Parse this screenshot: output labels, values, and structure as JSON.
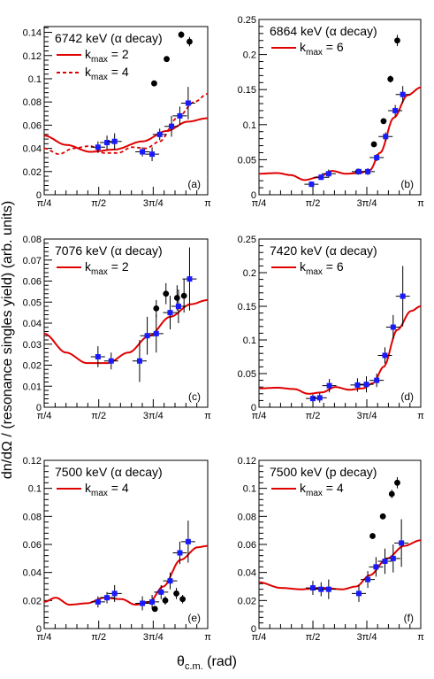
{
  "figure": {
    "ylabel": "dn/dΩ / (resonance singles yield) (arb. units)",
    "xlabel_main": "θ",
    "xlabel_sub": "c.m.",
    "xlabel_unit": " (rad)"
  },
  "chart_data": [
    {
      "type": "scatter",
      "tag": "(a)",
      "title": "6742 keV (α decay)",
      "legend": [
        {
          "label": "k",
          "sub": "max",
          "value": " = 2",
          "style": "solid"
        },
        {
          "label": "k",
          "sub": "max",
          "value": " = 4",
          "style": "dashed"
        }
      ],
      "xlim": [
        0.785,
        3.1416
      ],
      "ylim": [
        0,
        0.145
      ],
      "xticks": [
        "π/4",
        "π/2",
        "3π/4",
        "π"
      ],
      "yticks": [
        "0",
        "0.02",
        "0.04",
        "0.06",
        "0.08",
        "0.1",
        "0.12",
        "0.14"
      ],
      "ytick_values": [
        0,
        0.02,
        0.04,
        0.06,
        0.08,
        0.1,
        0.12,
        0.14
      ],
      "blue_points": [
        {
          "x": 1.56,
          "y": 0.041,
          "ey": 0.005
        },
        {
          "x": 1.69,
          "y": 0.045,
          "ey": 0.006
        },
        {
          "x": 1.8,
          "y": 0.046,
          "ey": 0.007
        },
        {
          "x": 2.2,
          "y": 0.037,
          "ey": 0.004
        },
        {
          "x": 2.34,
          "y": 0.035,
          "ey": 0.006
        },
        {
          "x": 2.45,
          "y": 0.052,
          "ey": 0.005
        },
        {
          "x": 2.62,
          "y": 0.059,
          "ey": 0.009
        },
        {
          "x": 2.74,
          "y": 0.068,
          "ey": 0.008
        },
        {
          "x": 2.86,
          "y": 0.079,
          "ey": 0.014
        }
      ],
      "black_points": [
        {
          "x": 2.37,
          "y": 0.096,
          "ey": 0.002
        },
        {
          "x": 2.55,
          "y": 0.117,
          "ey": 0.002
        },
        {
          "x": 2.76,
          "y": 0.138,
          "ey": 0.003
        },
        {
          "x": 2.88,
          "y": 0.132,
          "ey": 0.004
        }
      ],
      "solid_curve": {
        "c": 0.05,
        "a": [
          0.0,
          -0.01,
          0.0,
          0.004,
          0.0,
          0.0
        ],
        "offset": 0.0
      },
      "dashed_curve": {
        "c": 0.052,
        "a": [
          0.0,
          -0.014,
          0.0,
          0.008,
          0.0,
          0.0
        ],
        "ripple": 0.006
      }
    },
    {
      "type": "scatter",
      "tag": "(b)",
      "title": "6864 keV (α decay)",
      "legend": [
        {
          "label": "k",
          "sub": "max",
          "value": " = 6",
          "style": "solid"
        }
      ],
      "xlim": [
        0.785,
        3.1416
      ],
      "ylim": [
        0,
        0.25
      ],
      "xticks": [
        "π/4",
        "π/2",
        "3π/4",
        "π"
      ],
      "yticks": [
        "0",
        "0.05",
        "0.1",
        "0.15",
        "0.2",
        "0.25"
      ],
      "ytick_values": [
        0,
        0.05,
        0.1,
        0.15,
        0.2,
        0.25
      ],
      "blue_points": [
        {
          "x": 1.55,
          "y": 0.015,
          "ey": 0.004
        },
        {
          "x": 1.69,
          "y": 0.025,
          "ey": 0.004
        },
        {
          "x": 1.8,
          "y": 0.03,
          "ey": 0.006
        },
        {
          "x": 2.24,
          "y": 0.033,
          "ey": 0.004
        },
        {
          "x": 2.37,
          "y": 0.033,
          "ey": 0.005
        },
        {
          "x": 2.5,
          "y": 0.053,
          "ey": 0.005
        },
        {
          "x": 2.63,
          "y": 0.083,
          "ey": 0.006
        },
        {
          "x": 2.77,
          "y": 0.12,
          "ey": 0.008
        },
        {
          "x": 2.88,
          "y": 0.143,
          "ey": 0.012
        }
      ],
      "black_points": [
        {
          "x": 2.23,
          "y": 0.033,
          "ey": 0.003
        },
        {
          "x": 2.46,
          "y": 0.072,
          "ey": 0.003
        },
        {
          "x": 2.6,
          "y": 0.105,
          "ey": 0.004
        },
        {
          "x": 2.7,
          "y": 0.165,
          "ey": 0.005
        },
        {
          "x": 2.8,
          "y": 0.22,
          "ey": 0.008
        }
      ]
    },
    {
      "type": "scatter",
      "tag": "(c)",
      "title": "7076 keV (α decay)",
      "legend": [
        {
          "label": "k",
          "sub": "max",
          "value": " = 2",
          "style": "solid"
        }
      ],
      "xlim": [
        0.785,
        3.1416
      ],
      "ylim": [
        0,
        0.08
      ],
      "xticks": [
        "π/4",
        "π/2",
        "3π/4",
        "π"
      ],
      "yticks": [
        "0",
        "0.01",
        "0.02",
        "0.03",
        "0.04",
        "0.05",
        "0.06",
        "0.07",
        "0.08"
      ],
      "ytick_values": [
        0,
        0.01,
        0.02,
        0.03,
        0.04,
        0.05,
        0.06,
        0.07,
        0.08
      ],
      "blue_points": [
        {
          "x": 1.56,
          "y": 0.024,
          "ey": 0.005
        },
        {
          "x": 1.75,
          "y": 0.022,
          "ey": 0.004
        },
        {
          "x": 2.16,
          "y": 0.022,
          "ey": 0.01
        },
        {
          "x": 2.27,
          "y": 0.034,
          "ey": 0.009
        },
        {
          "x": 2.4,
          "y": 0.035,
          "ey": 0.009
        },
        {
          "x": 2.6,
          "y": 0.045,
          "ey": 0.008
        },
        {
          "x": 2.72,
          "y": 0.048,
          "ey": 0.008
        },
        {
          "x": 2.88,
          "y": 0.061,
          "ey": 0.015
        }
      ],
      "black_points": [
        {
          "x": 2.4,
          "y": 0.047,
          "ey": 0.004
        },
        {
          "x": 2.54,
          "y": 0.054,
          "ey": 0.005
        },
        {
          "x": 2.7,
          "y": 0.052,
          "ey": 0.006
        },
        {
          "x": 2.8,
          "y": 0.053,
          "ey": 0.008
        }
      ]
    },
    {
      "type": "scatter",
      "tag": "(d)",
      "title": "7420 keV (α decay)",
      "legend": [
        {
          "label": "k",
          "sub": "max",
          "value": " = 6",
          "style": "solid"
        }
      ],
      "xlim": [
        0.785,
        3.1416
      ],
      "ylim": [
        0,
        0.25
      ],
      "xticks": [
        "π/4",
        "π/2",
        "3π/4",
        "π"
      ],
      "yticks": [
        "0",
        "0.05",
        "0.1",
        "0.15",
        "0.2",
        "0.25"
      ],
      "ytick_values": [
        0,
        0.05,
        0.1,
        0.15,
        0.2,
        0.25
      ],
      "blue_points": [
        {
          "x": 1.57,
          "y": 0.013,
          "ey": 0.006
        },
        {
          "x": 1.67,
          "y": 0.014,
          "ey": 0.007
        },
        {
          "x": 1.81,
          "y": 0.032,
          "ey": 0.01
        },
        {
          "x": 2.22,
          "y": 0.033,
          "ey": 0.01
        },
        {
          "x": 2.35,
          "y": 0.034,
          "ey": 0.012
        },
        {
          "x": 2.5,
          "y": 0.04,
          "ey": 0.01
        },
        {
          "x": 2.62,
          "y": 0.077,
          "ey": 0.012
        },
        {
          "x": 2.74,
          "y": 0.119,
          "ey": 0.018
        },
        {
          "x": 2.88,
          "y": 0.165,
          "ey": 0.045
        }
      ],
      "black_points": []
    },
    {
      "type": "scatter",
      "tag": "(e)",
      "title": "7500 keV (α decay)",
      "legend": [
        {
          "label": "k",
          "sub": "max",
          "value": " = 4",
          "style": "solid"
        }
      ],
      "xlim": [
        0.785,
        3.1416
      ],
      "ylim": [
        0,
        0.12
      ],
      "xticks": [
        "π/4",
        "π/2",
        "3π/4",
        "π"
      ],
      "yticks": [
        "0",
        "0.02",
        "0.04",
        "0.06",
        "0.08",
        "0.1",
        "0.12"
      ],
      "ytick_values": [
        0,
        0.02,
        0.04,
        0.06,
        0.08,
        0.1,
        0.12
      ],
      "blue_points": [
        {
          "x": 1.56,
          "y": 0.019,
          "ey": 0.004
        },
        {
          "x": 1.69,
          "y": 0.022,
          "ey": 0.004
        },
        {
          "x": 1.8,
          "y": 0.025,
          "ey": 0.006
        },
        {
          "x": 2.2,
          "y": 0.018,
          "ey": 0.005
        },
        {
          "x": 2.34,
          "y": 0.019,
          "ey": 0.005
        },
        {
          "x": 2.47,
          "y": 0.026,
          "ey": 0.005
        },
        {
          "x": 2.6,
          "y": 0.034,
          "ey": 0.006
        },
        {
          "x": 2.74,
          "y": 0.054,
          "ey": 0.008
        },
        {
          "x": 2.86,
          "y": 0.062,
          "ey": 0.015
        }
      ],
      "black_points": [
        {
          "x": 2.38,
          "y": 0.014,
          "ey": 0.002
        },
        {
          "x": 2.53,
          "y": 0.02,
          "ey": 0.003
        },
        {
          "x": 2.69,
          "y": 0.025,
          "ey": 0.004
        },
        {
          "x": 2.78,
          "y": 0.021,
          "ey": 0.003
        }
      ]
    },
    {
      "type": "scatter",
      "tag": "(f)",
      "title": "7500 keV (p decay)",
      "legend": [
        {
          "label": "k",
          "sub": "max",
          "value": " = 4",
          "style": "solid"
        }
      ],
      "xlim": [
        0.785,
        3.1416
      ],
      "ylim": [
        0,
        0.12
      ],
      "xticks": [
        "π/4",
        "π/2",
        "3π/4",
        "π"
      ],
      "yticks": [
        "0",
        "0.02",
        "0.04",
        "0.06",
        "0.08",
        "0.1",
        "0.12"
      ],
      "ytick_values": [
        0,
        0.02,
        0.04,
        0.06,
        0.08,
        0.1,
        0.12
      ],
      "blue_points": [
        {
          "x": 1.57,
          "y": 0.029,
          "ey": 0.005
        },
        {
          "x": 1.69,
          "y": 0.028,
          "ey": 0.005
        },
        {
          "x": 1.8,
          "y": 0.028,
          "ey": 0.007
        },
        {
          "x": 2.24,
          "y": 0.025,
          "ey": 0.006
        },
        {
          "x": 2.37,
          "y": 0.035,
          "ey": 0.006
        },
        {
          "x": 2.49,
          "y": 0.044,
          "ey": 0.007
        },
        {
          "x": 2.62,
          "y": 0.048,
          "ey": 0.009
        },
        {
          "x": 2.74,
          "y": 0.05,
          "ey": 0.01
        },
        {
          "x": 2.86,
          "y": 0.061,
          "ey": 0.017
        }
      ],
      "black_points": [
        {
          "x": 2.44,
          "y": 0.066,
          "ey": 0.002
        },
        {
          "x": 2.59,
          "y": 0.08,
          "ey": 0.002
        },
        {
          "x": 2.72,
          "y": 0.096,
          "ey": 0.003
        },
        {
          "x": 2.8,
          "y": 0.104,
          "ey": 0.004
        }
      ]
    }
  ]
}
